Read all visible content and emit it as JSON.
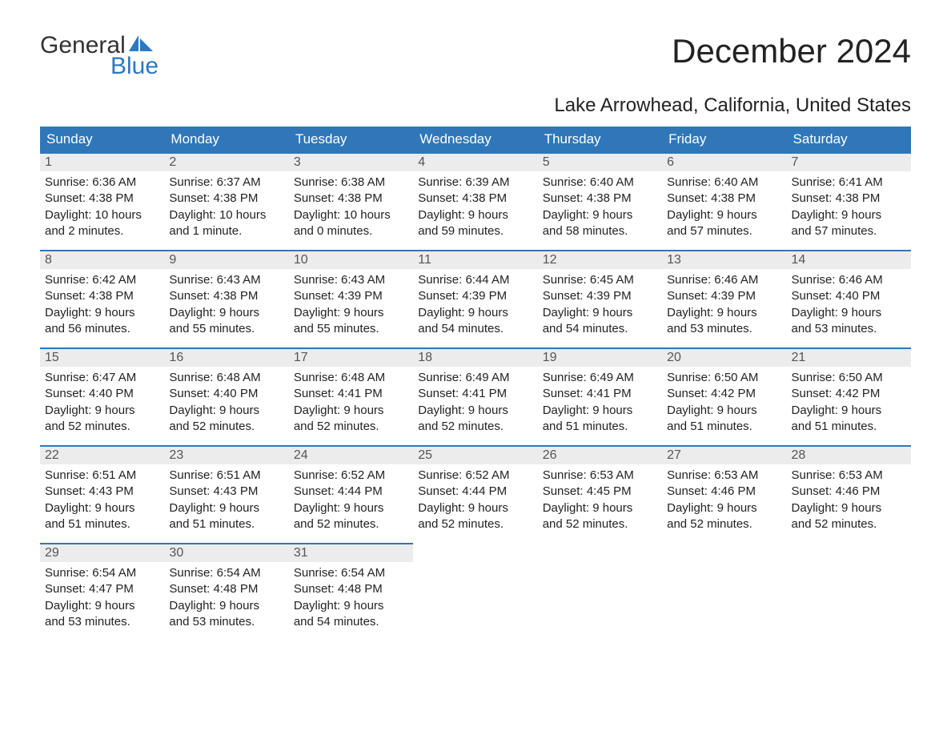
{
  "logo": {
    "word1": "General",
    "word2": "Blue",
    "sail_color": "#2b78c4"
  },
  "header": {
    "title": "December 2024",
    "subtitle": "Lake Arrowhead, California, United States"
  },
  "colors": {
    "header_bg": "#2f77b9",
    "header_text": "#ffffff",
    "daynum_bg": "#ececec",
    "daynum_border": "#2f77b9",
    "text": "#1a1a1a"
  },
  "day_names": [
    "Sunday",
    "Monday",
    "Tuesday",
    "Wednesday",
    "Thursday",
    "Friday",
    "Saturday"
  ],
  "weeks": [
    [
      {
        "num": "1",
        "sunrise": "Sunrise: 6:36 AM",
        "sunset": "Sunset: 4:38 PM",
        "daylight1": "Daylight: 10 hours",
        "daylight2": "and 2 minutes."
      },
      {
        "num": "2",
        "sunrise": "Sunrise: 6:37 AM",
        "sunset": "Sunset: 4:38 PM",
        "daylight1": "Daylight: 10 hours",
        "daylight2": "and 1 minute."
      },
      {
        "num": "3",
        "sunrise": "Sunrise: 6:38 AM",
        "sunset": "Sunset: 4:38 PM",
        "daylight1": "Daylight: 10 hours",
        "daylight2": "and 0 minutes."
      },
      {
        "num": "4",
        "sunrise": "Sunrise: 6:39 AM",
        "sunset": "Sunset: 4:38 PM",
        "daylight1": "Daylight: 9 hours",
        "daylight2": "and 59 minutes."
      },
      {
        "num": "5",
        "sunrise": "Sunrise: 6:40 AM",
        "sunset": "Sunset: 4:38 PM",
        "daylight1": "Daylight: 9 hours",
        "daylight2": "and 58 minutes."
      },
      {
        "num": "6",
        "sunrise": "Sunrise: 6:40 AM",
        "sunset": "Sunset: 4:38 PM",
        "daylight1": "Daylight: 9 hours",
        "daylight2": "and 57 minutes."
      },
      {
        "num": "7",
        "sunrise": "Sunrise: 6:41 AM",
        "sunset": "Sunset: 4:38 PM",
        "daylight1": "Daylight: 9 hours",
        "daylight2": "and 57 minutes."
      }
    ],
    [
      {
        "num": "8",
        "sunrise": "Sunrise: 6:42 AM",
        "sunset": "Sunset: 4:38 PM",
        "daylight1": "Daylight: 9 hours",
        "daylight2": "and 56 minutes."
      },
      {
        "num": "9",
        "sunrise": "Sunrise: 6:43 AM",
        "sunset": "Sunset: 4:38 PM",
        "daylight1": "Daylight: 9 hours",
        "daylight2": "and 55 minutes."
      },
      {
        "num": "10",
        "sunrise": "Sunrise: 6:43 AM",
        "sunset": "Sunset: 4:39 PM",
        "daylight1": "Daylight: 9 hours",
        "daylight2": "and 55 minutes."
      },
      {
        "num": "11",
        "sunrise": "Sunrise: 6:44 AM",
        "sunset": "Sunset: 4:39 PM",
        "daylight1": "Daylight: 9 hours",
        "daylight2": "and 54 minutes."
      },
      {
        "num": "12",
        "sunrise": "Sunrise: 6:45 AM",
        "sunset": "Sunset: 4:39 PM",
        "daylight1": "Daylight: 9 hours",
        "daylight2": "and 54 minutes."
      },
      {
        "num": "13",
        "sunrise": "Sunrise: 6:46 AM",
        "sunset": "Sunset: 4:39 PM",
        "daylight1": "Daylight: 9 hours",
        "daylight2": "and 53 minutes."
      },
      {
        "num": "14",
        "sunrise": "Sunrise: 6:46 AM",
        "sunset": "Sunset: 4:40 PM",
        "daylight1": "Daylight: 9 hours",
        "daylight2": "and 53 minutes."
      }
    ],
    [
      {
        "num": "15",
        "sunrise": "Sunrise: 6:47 AM",
        "sunset": "Sunset: 4:40 PM",
        "daylight1": "Daylight: 9 hours",
        "daylight2": "and 52 minutes."
      },
      {
        "num": "16",
        "sunrise": "Sunrise: 6:48 AM",
        "sunset": "Sunset: 4:40 PM",
        "daylight1": "Daylight: 9 hours",
        "daylight2": "and 52 minutes."
      },
      {
        "num": "17",
        "sunrise": "Sunrise: 6:48 AM",
        "sunset": "Sunset: 4:41 PM",
        "daylight1": "Daylight: 9 hours",
        "daylight2": "and 52 minutes."
      },
      {
        "num": "18",
        "sunrise": "Sunrise: 6:49 AM",
        "sunset": "Sunset: 4:41 PM",
        "daylight1": "Daylight: 9 hours",
        "daylight2": "and 52 minutes."
      },
      {
        "num": "19",
        "sunrise": "Sunrise: 6:49 AM",
        "sunset": "Sunset: 4:41 PM",
        "daylight1": "Daylight: 9 hours",
        "daylight2": "and 51 minutes."
      },
      {
        "num": "20",
        "sunrise": "Sunrise: 6:50 AM",
        "sunset": "Sunset: 4:42 PM",
        "daylight1": "Daylight: 9 hours",
        "daylight2": "and 51 minutes."
      },
      {
        "num": "21",
        "sunrise": "Sunrise: 6:50 AM",
        "sunset": "Sunset: 4:42 PM",
        "daylight1": "Daylight: 9 hours",
        "daylight2": "and 51 minutes."
      }
    ],
    [
      {
        "num": "22",
        "sunrise": "Sunrise: 6:51 AM",
        "sunset": "Sunset: 4:43 PM",
        "daylight1": "Daylight: 9 hours",
        "daylight2": "and 51 minutes."
      },
      {
        "num": "23",
        "sunrise": "Sunrise: 6:51 AM",
        "sunset": "Sunset: 4:43 PM",
        "daylight1": "Daylight: 9 hours",
        "daylight2": "and 51 minutes."
      },
      {
        "num": "24",
        "sunrise": "Sunrise: 6:52 AM",
        "sunset": "Sunset: 4:44 PM",
        "daylight1": "Daylight: 9 hours",
        "daylight2": "and 52 minutes."
      },
      {
        "num": "25",
        "sunrise": "Sunrise: 6:52 AM",
        "sunset": "Sunset: 4:44 PM",
        "daylight1": "Daylight: 9 hours",
        "daylight2": "and 52 minutes."
      },
      {
        "num": "26",
        "sunrise": "Sunrise: 6:53 AM",
        "sunset": "Sunset: 4:45 PM",
        "daylight1": "Daylight: 9 hours",
        "daylight2": "and 52 minutes."
      },
      {
        "num": "27",
        "sunrise": "Sunrise: 6:53 AM",
        "sunset": "Sunset: 4:46 PM",
        "daylight1": "Daylight: 9 hours",
        "daylight2": "and 52 minutes."
      },
      {
        "num": "28",
        "sunrise": "Sunrise: 6:53 AM",
        "sunset": "Sunset: 4:46 PM",
        "daylight1": "Daylight: 9 hours",
        "daylight2": "and 52 minutes."
      }
    ],
    [
      {
        "num": "29",
        "sunrise": "Sunrise: 6:54 AM",
        "sunset": "Sunset: 4:47 PM",
        "daylight1": "Daylight: 9 hours",
        "daylight2": "and 53 minutes."
      },
      {
        "num": "30",
        "sunrise": "Sunrise: 6:54 AM",
        "sunset": "Sunset: 4:48 PM",
        "daylight1": "Daylight: 9 hours",
        "daylight2": "and 53 minutes."
      },
      {
        "num": "31",
        "sunrise": "Sunrise: 6:54 AM",
        "sunset": "Sunset: 4:48 PM",
        "daylight1": "Daylight: 9 hours",
        "daylight2": "and 54 minutes."
      },
      null,
      null,
      null,
      null
    ]
  ]
}
